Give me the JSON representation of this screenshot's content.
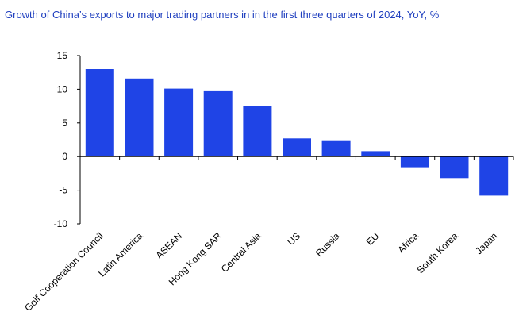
{
  "chart_data": {
    "type": "bar",
    "title": "Growth of China’s exports to major trading partners in in the first three quarters of 2024, YoY, %",
    "xlabel": "",
    "ylabel": "",
    "categories": [
      "Golf Cooperation Council",
      "Latin America",
      "ASEAN",
      "Hong Kong SAR",
      "Central Asia",
      "US",
      "Russia",
      "EU",
      "Africa",
      "South Korea",
      "Japan"
    ],
    "values": [
      13.0,
      11.6,
      10.1,
      9.7,
      7.5,
      2.7,
      2.3,
      0.8,
      -1.7,
      -3.2,
      -5.8
    ],
    "ylim": [
      -10,
      15
    ],
    "yticks": [
      -10,
      -5,
      0,
      5,
      10,
      15
    ],
    "grid": false,
    "colors": {
      "bar": "#1f44e6",
      "axis": "#000000",
      "title": "#1f3fbf"
    }
  }
}
